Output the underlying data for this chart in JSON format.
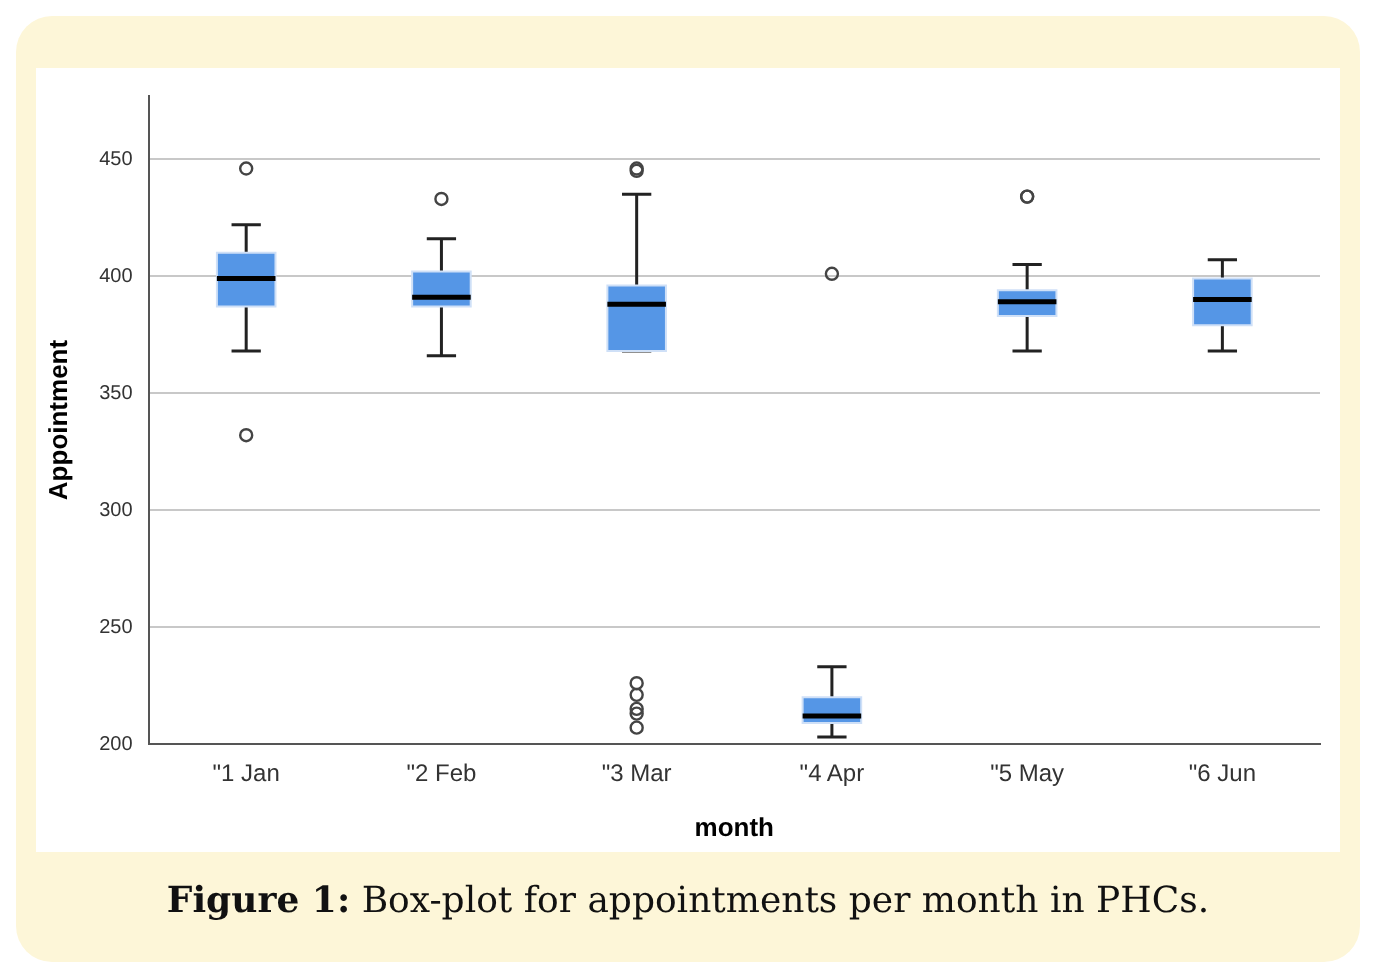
{
  "chart_data": {
    "type": "box",
    "xlabel": "month",
    "ylabel": "Appointment",
    "categories": [
      "\"1 Jan",
      "\"2 Feb",
      "\"3 Mar",
      "\"4 Apr",
      "\"5 May",
      "\"6 Jun"
    ],
    "color": "#5596e6",
    "boxes": [
      {
        "low": 368,
        "q1": 387,
        "median": 399,
        "q3": 410,
        "high": 422,
        "outliers": [
          446,
          332
        ]
      },
      {
        "low": 366,
        "q1": 387,
        "median": 391,
        "q3": 402,
        "high": 416,
        "outliers": [
          433
        ]
      },
      {
        "low": 368,
        "q1": 368,
        "median": 388,
        "q3": 396,
        "high": 435,
        "outliers": [
          445,
          446,
          226,
          221,
          215,
          213,
          207
        ]
      },
      {
        "low": 203,
        "q1": 209,
        "median": 212,
        "q3": 220,
        "high": 233,
        "outliers": [
          401
        ]
      },
      {
        "low": 368,
        "q1": 383,
        "median": 389,
        "q3": 394,
        "high": 405,
        "outliers": [
          434,
          434
        ]
      },
      {
        "low": 368,
        "q1": 379,
        "median": 390,
        "q3": 399,
        "high": 407
      }
    ],
    "ylim": [
      200,
      477
    ],
    "yticks": [
      200,
      250,
      300,
      350,
      400,
      450
    ],
    "grid": "y",
    "legend": false,
    "annotations": [
      "Figure 1: Box-plot for appointments per month in PHCs."
    ]
  }
}
